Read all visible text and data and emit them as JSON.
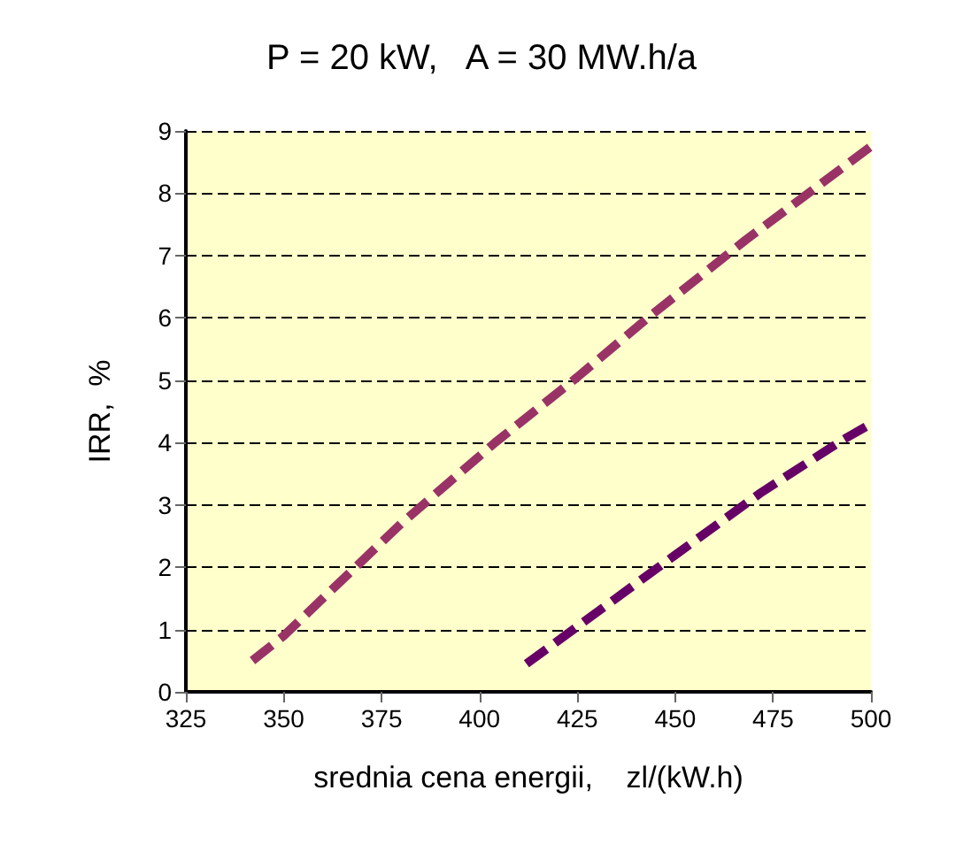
{
  "chart_data": {
    "type": "line",
    "title": "P = 20 kW,   A = 30 MW.h/a",
    "xlabel": "srednia cena energii,    zl/(kW.h)",
    "ylabel": "IRR,  %",
    "series": [
      {
        "color": "#993366",
        "line_style": "dashed",
        "x": [
          342,
          350,
          380,
          404,
          425,
          443,
          468,
          500
        ],
        "values": [
          0.5,
          0.9,
          2.7,
          4.0,
          5.05,
          6.0,
          7.25,
          8.75
        ]
      },
      {
        "color": "#660066",
        "line_style": "dashed",
        "x": [
          412,
          449,
          472,
          493,
          500
        ],
        "values": [
          0.45,
          2.15,
          3.2,
          4.05,
          4.3
        ]
      }
    ],
    "xlim": [
      325,
      500
    ],
    "xticks": [
      325,
      350,
      375,
      400,
      425,
      450,
      475,
      500
    ],
    "ylim": [
      0,
      9
    ],
    "yticks": [
      0,
      1,
      2,
      3,
      4,
      5,
      6,
      7,
      8,
      9
    ],
    "grid": "y",
    "marker": "none"
  }
}
